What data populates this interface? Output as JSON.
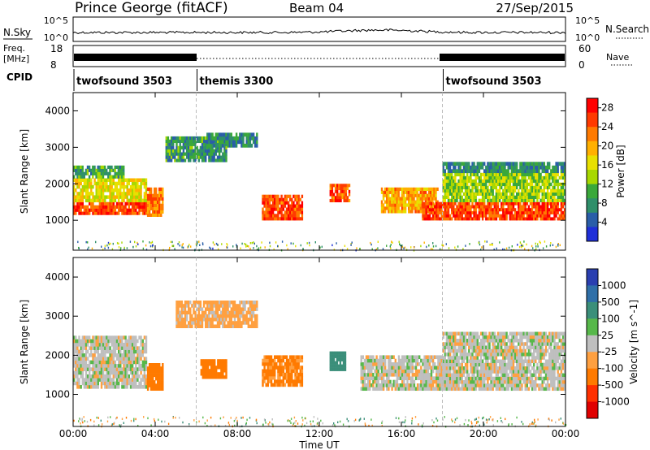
{
  "header": {
    "station": "Prince George (fitACF)",
    "beam": "Beam 04",
    "date": "27/Sep/2015"
  },
  "top_panels": {
    "nsky_label": "N.Sky",
    "nsky_ticks": [
      "10^5",
      "10^0"
    ],
    "nsearch_label": "N.Search",
    "freq_label_1": "Freq.",
    "freq_label_2": "[MHz]",
    "freq_ticks": [
      "18",
      "8"
    ],
    "nave_ticks": [
      "60",
      "0"
    ],
    "nave_label": "Nave",
    "cpid_label": "CPID"
  },
  "cpid_segments": [
    {
      "name": "twofsound 3503",
      "start": 0
    },
    {
      "name": "themis 3300",
      "start": 6
    },
    {
      "name": "twofsound 3503",
      "start": 18
    }
  ],
  "axes": {
    "ylabel": "Slant Range [km]",
    "y_ticks": [
      "4000",
      "3000",
      "2000",
      "1000"
    ],
    "x_ticks": [
      "00:00",
      "04:00",
      "08:00",
      "12:00",
      "16:00",
      "20:00",
      "00:00"
    ],
    "xlabel": "Time UT"
  },
  "power_colorbar": {
    "label": "Power [dB]",
    "ticks": [
      "28",
      "24",
      "20",
      "16",
      "12",
      "8",
      "4"
    ],
    "colors": [
      "#ff0000",
      "#ff3a00",
      "#ff7a00",
      "#ffb000",
      "#e8e000",
      "#a8d800",
      "#3aa83a",
      "#2f8f6a",
      "#2a5ea8",
      "#1f2fd8"
    ]
  },
  "velocity_colorbar": {
    "label": "Velocity [m s^-1]",
    "ticks": [
      "1000",
      "500",
      "100",
      "25",
      "-25",
      "-100",
      "-500",
      "-1000"
    ],
    "colors": [
      "#2a3fb0",
      "#2f6fa8",
      "#3b8f7a",
      "#57b84a",
      "#bfbfbf",
      "#ffa040",
      "#ff7a00",
      "#ff3000",
      "#e00000"
    ]
  },
  "chart_data": {
    "type": "heatmap",
    "title": "Prince George (fitACF)",
    "xlabel": "Time UT",
    "ylabel": "Slant Range [km]",
    "xlim": [
      0,
      24
    ],
    "ylim": [
      180,
      4500
    ],
    "power_bands": [
      {
        "t0": 0.0,
        "t1": 3.6,
        "r0": 1150,
        "r1": 1500,
        "v": 27
      },
      {
        "t0": 0.0,
        "t1": 3.6,
        "r0": 1500,
        "r1": 2150,
        "v": 18
      },
      {
        "t0": 0.0,
        "t1": 2.5,
        "r0": 2150,
        "r1": 2500,
        "v": 11
      },
      {
        "t0": 3.6,
        "t1": 4.4,
        "r0": 1100,
        "r1": 1900,
        "v": 24
      },
      {
        "t0": 4.5,
        "t1": 7.5,
        "r0": 2600,
        "r1": 3300,
        "v": 10
      },
      {
        "t0": 6.5,
        "t1": 9.0,
        "r0": 3000,
        "r1": 3400,
        "v": 9
      },
      {
        "t0": 9.2,
        "t1": 11.2,
        "r0": 1000,
        "r1": 1700,
        "v": 26
      },
      {
        "t0": 12.5,
        "t1": 13.5,
        "r0": 1500,
        "r1": 2000,
        "v": 25
      },
      {
        "t0": 15.0,
        "t1": 17.8,
        "r0": 1200,
        "r1": 1900,
        "v": 22
      },
      {
        "t0": 17.0,
        "t1": 24.0,
        "r0": 1000,
        "r1": 1500,
        "v": 27
      },
      {
        "t0": 18.0,
        "t1": 24.0,
        "r0": 1500,
        "r1": 2300,
        "v": 15
      },
      {
        "t0": 18.0,
        "t1": 24.0,
        "r0": 2300,
        "r1": 2600,
        "v": 9
      }
    ],
    "velocity_bands": [
      {
        "t0": 0.0,
        "t1": 3.6,
        "r0": 1150,
        "r1": 2500,
        "v": 0
      },
      {
        "t0": 3.6,
        "t1": 4.4,
        "r0": 1100,
        "r1": 1800,
        "v": -300
      },
      {
        "t0": 6.2,
        "t1": 7.5,
        "r0": 1400,
        "r1": 1900,
        "v": -300
      },
      {
        "t0": 9.2,
        "t1": 11.2,
        "r0": 1200,
        "r1": 2000,
        "v": -120
      },
      {
        "t0": 12.5,
        "t1": 13.3,
        "r0": 1600,
        "r1": 2100,
        "v": 200
      },
      {
        "t0": 14.0,
        "t1": 18.0,
        "r0": 1100,
        "r1": 2000,
        "v": 0
      },
      {
        "t0": 18.0,
        "t1": 24.0,
        "r0": 1100,
        "r1": 2600,
        "v": 0
      },
      {
        "t0": 5.0,
        "t1": 9.0,
        "r0": 2700,
        "r1": 3400,
        "v": -50
      }
    ]
  }
}
